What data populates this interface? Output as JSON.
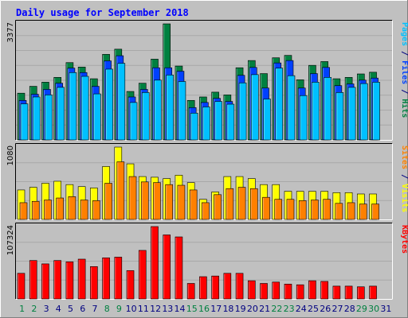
{
  "chart_data": {
    "type": "bar",
    "title": "Daily usage for September 2018",
    "categories": [
      "1",
      "2",
      "3",
      "4",
      "5",
      "6",
      "7",
      "8",
      "9",
      "10",
      "11",
      "12",
      "13",
      "14",
      "15",
      "16",
      "17",
      "18",
      "19",
      "20",
      "21",
      "22",
      "23",
      "24",
      "25",
      "26",
      "27",
      "28",
      "29",
      "30",
      "31"
    ],
    "weekend_days": [
      "1",
      "2",
      "8",
      "9",
      "15",
      "16",
      "22",
      "23",
      "29",
      "30"
    ],
    "colors": {
      "hits": "#008040",
      "files": "#0040ff",
      "pages": "#00c0ff",
      "visits": "#ffff00",
      "sites": "#ff8000",
      "kbytes": "#ff0000",
      "title": "#0000ff",
      "weekend_label": "#008040",
      "weekday_label": "#000080",
      "plot_bg": "#c0c0c0",
      "frame_bg": "#c0c0c0"
    },
    "panels": [
      {
        "id": "hits-files-pages",
        "max_label": "3377",
        "ymax": 3377,
        "side_label_parts": [
          {
            "text": "Pages",
            "color": "#00c0ff"
          },
          {
            "text": " / ",
            "color": "#000080"
          },
          {
            "text": "Files",
            "color": "#0040ff"
          },
          {
            "text": " / ",
            "color": "#000080"
          },
          {
            "text": "Hits",
            "color": "#008040"
          }
        ],
        "series": [
          {
            "name": "Hits",
            "color": "#008040",
            "values": [
              1360,
              1560,
              1680,
              1820,
              2250,
              2120,
              1780,
              2490,
              2640,
              1410,
              1650,
              2350,
              3377,
              2150,
              1150,
              1250,
              1390,
              1310,
              2100,
              2310,
              1930,
              2390,
              2460,
              1750,
              2170,
              2280,
              1780,
              1820,
              1920,
              1970,
              0
            ]
          },
          {
            "name": "Files",
            "color": "#0040ff",
            "values": [
              1150,
              1330,
              1470,
              1650,
              2090,
              1960,
              1560,
              2300,
              2450,
              1250,
              1470,
              2100,
              2100,
              2000,
              940,
              1090,
              1210,
              1120,
              1880,
              2110,
              1510,
              2240,
              2310,
              1510,
              1930,
              2110,
              1580,
              1630,
              1740,
              1800,
              0
            ]
          },
          {
            "name": "Pages",
            "color": "#00c0ff",
            "values": [
              1050,
              1250,
              1310,
              1530,
              1960,
              1850,
              1340,
              2060,
              2230,
              1090,
              1380,
              1740,
              1890,
              1700,
              780,
              960,
              1120,
              1040,
              1660,
              1900,
              1190,
              2090,
              1870,
              1290,
              1680,
              1820,
              1380,
              1530,
              1640,
              1680,
              0
            ]
          }
        ]
      },
      {
        "id": "visits-sites",
        "max_label": "1080",
        "ymax": 1080,
        "side_label_parts": [
          {
            "text": "Sites",
            "color": "#ff8000"
          },
          {
            "text": " / ",
            "color": "#000080"
          },
          {
            "text": "Visits",
            "color": "#ffff00"
          }
        ],
        "series": [
          {
            "name": "Visits",
            "color": "#ffff00",
            "values": [
              440,
              480,
              540,
              570,
              520,
              490,
              470,
              790,
              1080,
              830,
              640,
              630,
              610,
              660,
              550,
              300,
              410,
              640,
              640,
              610,
              520,
              520,
              420,
              420,
              420,
              420,
              400,
              400,
              380,
              380,
              0
            ]
          },
          {
            "name": "Sites",
            "color": "#ff8000",
            "values": [
              250,
              270,
              290,
              320,
              340,
              290,
              280,
              540,
              860,
              640,
              560,
              550,
              520,
              510,
              440,
              250,
              370,
              460,
              480,
              460,
              330,
              300,
              300,
              280,
              290,
              300,
              240,
              250,
              230,
              230,
              0
            ]
          }
        ]
      },
      {
        "id": "kbytes",
        "max_label": "107324",
        "ymax": 107324,
        "side_label_parts": [
          {
            "text": "KBytes",
            "color": "#ff0000"
          }
        ],
        "series": [
          {
            "name": "KBytes",
            "color": "#ff0000",
            "values": [
              38000,
              57000,
              52000,
              57000,
              55000,
              59000,
              48000,
              61000,
              62000,
              42000,
              72000,
              107324,
              95000,
              92000,
              23000,
              33000,
              34000,
              38000,
              38000,
              27000,
              23000,
              25000,
              22000,
              21000,
              27000,
              26000,
              19000,
              19000,
              18000,
              19000,
              0
            ]
          }
        ]
      }
    ]
  }
}
